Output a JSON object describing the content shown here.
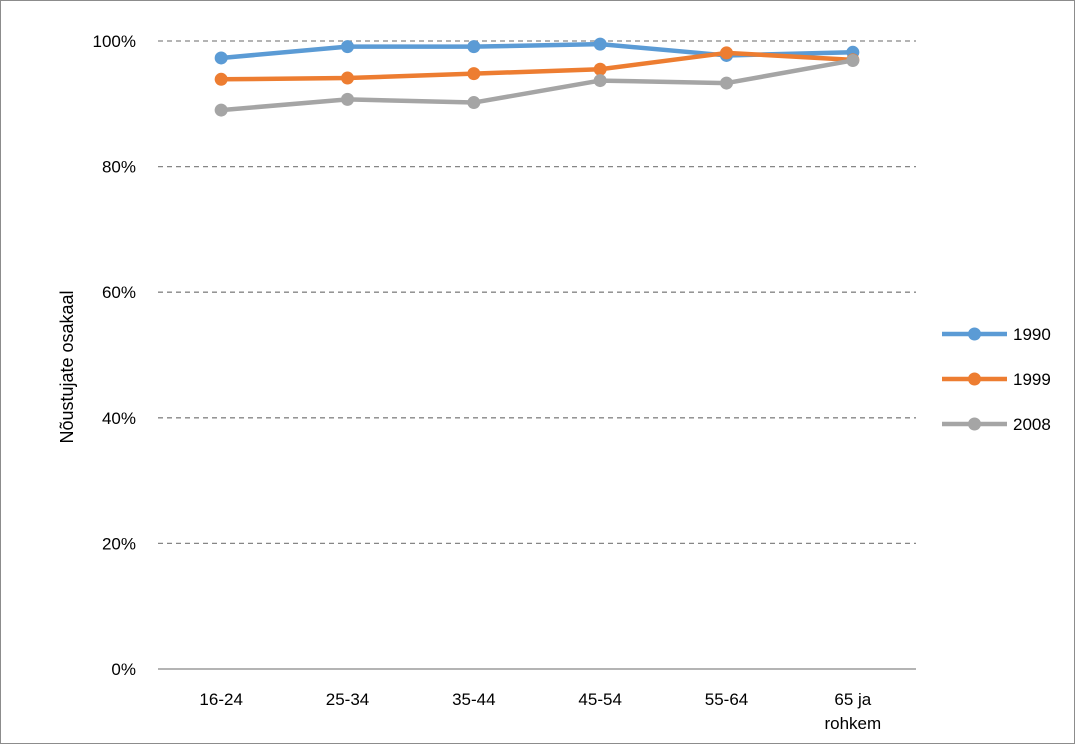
{
  "chart_data": {
    "type": "line",
    "title": "",
    "xlabel": "",
    "ylabel": "Nõustujate osakaal",
    "ylim": [
      0,
      1
    ],
    "yticks": [
      {
        "value": 0,
        "label": "0%"
      },
      {
        "value": 0.2,
        "label": "20%"
      },
      {
        "value": 0.4,
        "label": "40%"
      },
      {
        "value": 0.6,
        "label": "60%"
      },
      {
        "value": 0.8,
        "label": "80%"
      },
      {
        "value": 1.0,
        "label": "100%"
      }
    ],
    "categories": [
      [
        "16-24"
      ],
      [
        "25-34"
      ],
      [
        "35-44"
      ],
      [
        "45-54"
      ],
      [
        "55-64"
      ],
      [
        "65 ja",
        "rohkem"
      ]
    ],
    "grid": "horizontal-dashed",
    "legend_position": "right",
    "series": [
      {
        "name": "1990",
        "color": "#5b9bd5",
        "values": [
          0.973,
          0.991,
          0.991,
          0.995,
          0.977,
          0.982
        ]
      },
      {
        "name": "1999",
        "color": "#ed7d31",
        "values": [
          0.939,
          0.941,
          0.948,
          0.955,
          0.981,
          0.97
        ]
      },
      {
        "name": "2008",
        "color": "#a5a5a5",
        "values": [
          0.89,
          0.907,
          0.902,
          0.937,
          0.933,
          0.969
        ]
      }
    ]
  }
}
